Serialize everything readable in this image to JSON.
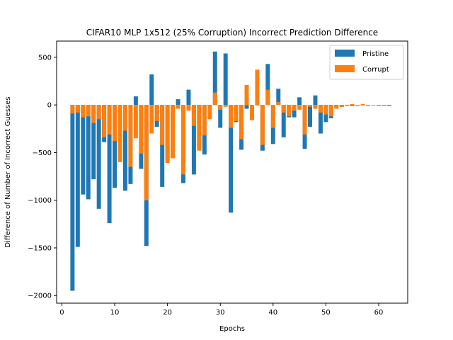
{
  "chart_data": {
    "type": "bar",
    "title": "CIFAR10 MLP 1x512 (25% Corruption) Incorrect Prediction Difference",
    "xlabel": "Epochs",
    "ylabel": "Difference of Number of Incorrect Guesses",
    "xlim": [
      -1,
      65.5
    ],
    "ylim": [
      -2080,
      670
    ],
    "xticks": [
      0,
      10,
      20,
      30,
      40,
      50,
      60
    ],
    "yticks": [
      500,
      0,
      -500,
      -1000,
      -1500,
      -2000
    ],
    "ytick_labels": [
      "500",
      "0",
      "−500",
      "−1000",
      "−1500",
      "−2000"
    ],
    "legend_position": "top-right",
    "grid": false,
    "x": [
      2,
      3,
      4,
      5,
      6,
      7,
      8,
      9,
      10,
      11,
      12,
      13,
      14,
      15,
      16,
      17,
      18,
      19,
      20,
      21,
      22,
      23,
      24,
      25,
      26,
      27,
      28,
      29,
      30,
      31,
      32,
      33,
      34,
      35,
      36,
      37,
      38,
      39,
      40,
      41,
      42,
      43,
      44,
      45,
      46,
      47,
      48,
      49,
      50,
      51,
      52,
      53,
      54,
      55,
      56,
      57,
      58,
      59,
      60,
      61,
      62
    ],
    "series": [
      {
        "name": "Pristine",
        "color": "#1f77b4",
        "values": [
          -1950,
          -1490,
          -940,
          -990,
          -780,
          -1090,
          -390,
          -1240,
          -870,
          -430,
          -900,
          -830,
          90,
          -670,
          -1480,
          320,
          -230,
          -860,
          -580,
          -550,
          60,
          -820,
          160,
          -730,
          -450,
          -520,
          -20,
          560,
          -240,
          540,
          -1130,
          -180,
          -470,
          -40,
          -40,
          0,
          -480,
          430,
          -410,
          170,
          -340,
          -130,
          -130,
          80,
          -460,
          -230,
          100,
          -300,
          -180,
          -140,
          -20,
          -20,
          -10,
          -10,
          0,
          0,
          -10,
          0,
          0,
          -10,
          -10
        ]
      },
      {
        "name": "Corrupt",
        "color": "#ff7f0e",
        "values": [
          -90,
          -80,
          -130,
          -120,
          -190,
          -150,
          -340,
          -310,
          -380,
          -600,
          -270,
          -650,
          -350,
          -510,
          -1000,
          -300,
          -170,
          -420,
          -610,
          -560,
          -40,
          -730,
          -60,
          -220,
          -480,
          -320,
          -150,
          130,
          -50,
          -20,
          -240,
          -170,
          -360,
          210,
          -160,
          370,
          -420,
          160,
          -240,
          30,
          -80,
          -120,
          -60,
          -50,
          -310,
          -20,
          -40,
          -80,
          -100,
          -120,
          -40,
          -20,
          -10,
          10,
          -10,
          10,
          -10,
          0,
          -10,
          -10,
          0
        ]
      }
    ]
  }
}
